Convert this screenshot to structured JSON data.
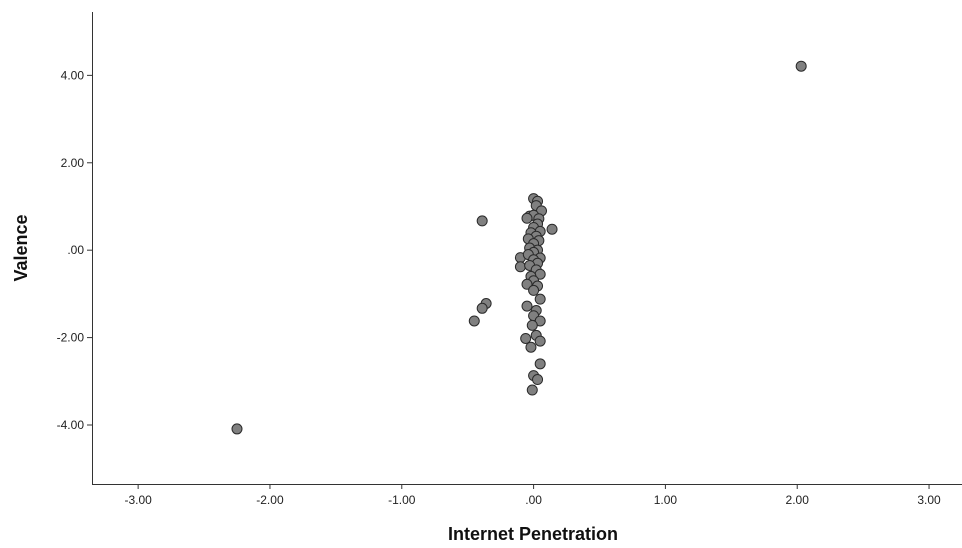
{
  "chart_data": {
    "type": "scatter",
    "title": "",
    "xlabel": "Internet Penetration",
    "ylabel": "Valence",
    "xlim": [
      -3.35,
      3.25
    ],
    "ylim": [
      -5.35,
      5.45
    ],
    "x_ticks": [
      -3,
      -2,
      -1,
      0,
      1,
      2,
      3
    ],
    "x_tick_labels": [
      "-3.00",
      "-2.00",
      "-1.00",
      ".00",
      "1.00",
      "2.00",
      "3.00"
    ],
    "y_ticks": [
      -4,
      -2,
      0,
      2,
      4
    ],
    "y_tick_labels": [
      "-4.00",
      "-2.00",
      ".00",
      "2.00",
      "4.00"
    ],
    "grid": false,
    "legend": "none",
    "marker_color": "#808080",
    "marker_edge_color": "#2a2a2a",
    "points": [
      {
        "x": 2.03,
        "y": 4.21
      },
      {
        "x": -2.25,
        "y": -4.09
      },
      {
        "x": -0.39,
        "y": 0.67
      },
      {
        "x": 0.14,
        "y": 0.48
      },
      {
        "x": -0.36,
        "y": -1.22
      },
      {
        "x": -0.39,
        "y": -1.33
      },
      {
        "x": -0.45,
        "y": -1.62
      },
      {
        "x": -0.1,
        "y": -0.17
      },
      {
        "x": -0.1,
        "y": -0.38
      },
      {
        "x": 0.0,
        "y": 1.18
      },
      {
        "x": 0.03,
        "y": 1.12
      },
      {
        "x": 0.02,
        "y": 1.02
      },
      {
        "x": 0.06,
        "y": 0.9
      },
      {
        "x": -0.03,
        "y": 0.78
      },
      {
        "x": 0.0,
        "y": 0.8
      },
      {
        "x": 0.04,
        "y": 0.72
      },
      {
        "x": -0.05,
        "y": 0.73
      },
      {
        "x": 0.03,
        "y": 0.6
      },
      {
        "x": 0.0,
        "y": 0.52
      },
      {
        "x": 0.05,
        "y": 0.43
      },
      {
        "x": -0.02,
        "y": 0.4
      },
      {
        "x": 0.02,
        "y": 0.32
      },
      {
        "x": -0.04,
        "y": 0.26
      },
      {
        "x": 0.04,
        "y": 0.22
      },
      {
        "x": 0.0,
        "y": 0.15
      },
      {
        "x": -0.03,
        "y": 0.05
      },
      {
        "x": 0.03,
        "y": 0.0
      },
      {
        "x": 0.0,
        "y": -0.05
      },
      {
        "x": -0.04,
        "y": -0.1
      },
      {
        "x": 0.05,
        "y": -0.18
      },
      {
        "x": 0.0,
        "y": -0.22
      },
      {
        "x": 0.03,
        "y": -0.3
      },
      {
        "x": -0.03,
        "y": -0.35
      },
      {
        "x": 0.02,
        "y": -0.45
      },
      {
        "x": 0.05,
        "y": -0.55
      },
      {
        "x": -0.02,
        "y": -0.6
      },
      {
        "x": 0.0,
        "y": -0.7
      },
      {
        "x": -0.05,
        "y": -0.78
      },
      {
        "x": 0.03,
        "y": -0.82
      },
      {
        "x": 0.0,
        "y": -0.92
      },
      {
        "x": 0.05,
        "y": -1.12
      },
      {
        "x": -0.05,
        "y": -1.28
      },
      {
        "x": 0.02,
        "y": -1.38
      },
      {
        "x": 0.0,
        "y": -1.5
      },
      {
        "x": 0.05,
        "y": -1.62
      },
      {
        "x": -0.01,
        "y": -1.72
      },
      {
        "x": 0.02,
        "y": -1.95
      },
      {
        "x": -0.06,
        "y": -2.02
      },
      {
        "x": 0.05,
        "y": -2.08
      },
      {
        "x": -0.02,
        "y": -2.22
      },
      {
        "x": 0.05,
        "y": -2.6
      },
      {
        "x": 0.0,
        "y": -2.87
      },
      {
        "x": 0.03,
        "y": -2.96
      },
      {
        "x": -0.01,
        "y": -3.2
      }
    ]
  }
}
